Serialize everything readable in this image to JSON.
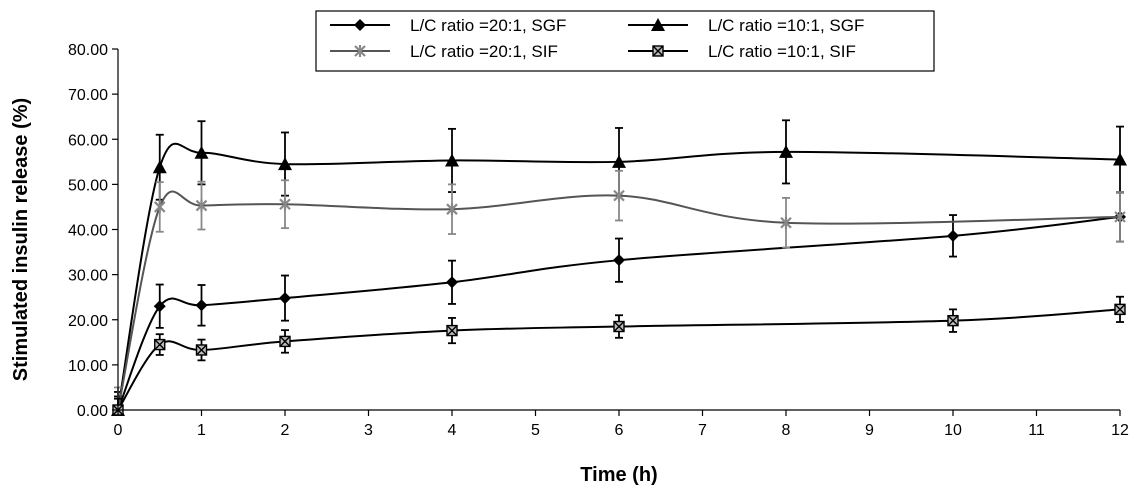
{
  "chart_data": {
    "type": "line",
    "title": "",
    "xlabel": "Time (h)",
    "ylabel": "Stimulated insulin release (%)",
    "xlim": [
      0,
      12
    ],
    "ylim": [
      0,
      80
    ],
    "xticks": [
      "0",
      "1",
      "2",
      "3",
      "4",
      "5",
      "6",
      "7",
      "8",
      "9",
      "10",
      "11",
      "12"
    ],
    "yticks": [
      "0.00",
      "10.00",
      "20.00",
      "30.00",
      "40.00",
      "50.00",
      "60.00",
      "70.00",
      "80.00"
    ],
    "grid": false,
    "legend_position": "top-center",
    "series": [
      {
        "name": "L/C ratio =20:1, SGF",
        "marker": "diamond",
        "color": "#000000",
        "x": [
          0,
          0.5,
          1,
          2,
          4,
          6,
          10,
          12
        ],
        "y": [
          0,
          23.0,
          23.2,
          24.8,
          28.3,
          33.2,
          38.6,
          42.8
        ],
        "error": [
          3.0,
          4.8,
          4.5,
          5.0,
          4.8,
          4.8,
          4.6,
          5.5
        ]
      },
      {
        "name": "L/C ratio =10:1, SGF",
        "marker": "triangle",
        "color": "#000000",
        "x": [
          0,
          0.5,
          1,
          2,
          4,
          6,
          8,
          12
        ],
        "y": [
          0,
          53.8,
          57.0,
          54.5,
          55.3,
          55.0,
          57.2,
          55.5
        ],
        "error": [
          4.0,
          7.2,
          7.0,
          7.0,
          7.0,
          7.5,
          7.0,
          7.3
        ]
      },
      {
        "name": "L/C ratio =20:1, SIF",
        "marker": "asterisk",
        "color": "#888888",
        "x": [
          0,
          0.5,
          1,
          2,
          4,
          6,
          8,
          12
        ],
        "y": [
          0,
          45.0,
          45.3,
          45.6,
          44.5,
          47.5,
          41.5,
          42.8
        ],
        "error": [
          5.0,
          5.5,
          5.3,
          5.3,
          5.5,
          5.5,
          5.5,
          5.5
        ]
      },
      {
        "name": "L/C ratio =10:1, SIF",
        "marker": "square-x",
        "color": "#000000",
        "x": [
          0,
          0.5,
          1,
          2,
          4,
          6,
          10,
          12
        ],
        "y": [
          0,
          14.5,
          13.3,
          15.2,
          17.6,
          18.5,
          19.8,
          22.3
        ],
        "error": [
          2.5,
          2.3,
          2.3,
          2.5,
          2.8,
          2.5,
          2.5,
          2.8
        ]
      }
    ]
  }
}
